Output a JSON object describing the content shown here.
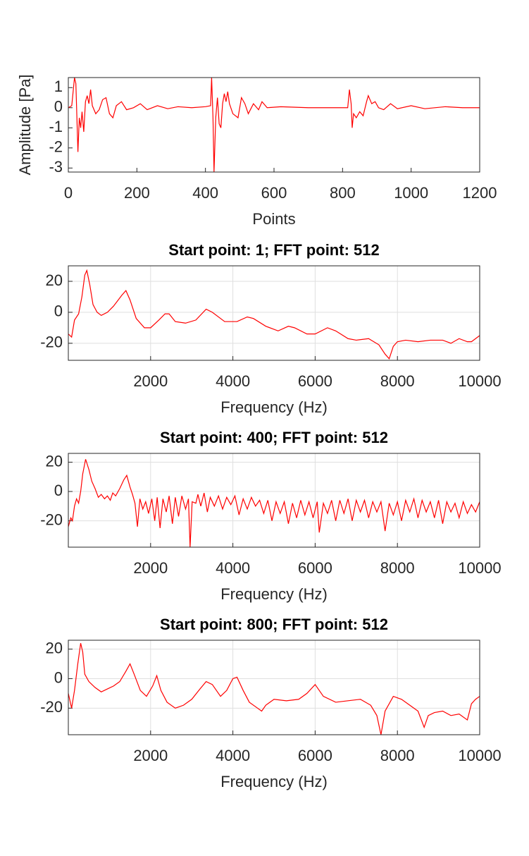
{
  "chart_data": [
    {
      "type": "line",
      "xlabel": "Points",
      "ylabel": "Amplitude [Pa]",
      "color": "#ff0000",
      "grid": false,
      "xlim": [
        0,
        1200
      ],
      "ylim": [
        -3.2,
        1.5
      ],
      "xticks": [
        0,
        200,
        400,
        600,
        800,
        1000,
        1200
      ],
      "yticks": [
        -3,
        -2,
        -1,
        0,
        1
      ],
      "x": [
        0,
        10,
        18,
        22,
        25,
        28,
        32,
        36,
        40,
        45,
        50,
        55,
        60,
        65,
        70,
        80,
        90,
        100,
        110,
        120,
        130,
        140,
        155,
        170,
        190,
        210,
        230,
        260,
        290,
        320,
        360,
        400,
        415,
        418,
        422,
        425,
        430,
        435,
        440,
        445,
        450,
        455,
        460,
        465,
        470,
        480,
        495,
        505,
        515,
        525,
        540,
        555,
        565,
        580,
        620,
        700,
        800,
        815,
        820,
        825,
        828,
        832,
        840,
        850,
        860,
        870,
        875,
        885,
        895,
        905,
        920,
        940,
        960,
        1000,
        1040,
        1100,
        1150,
        1200
      ],
      "values": [
        0,
        0.1,
        1.5,
        1.2,
        -0.5,
        -2.2,
        -0.5,
        -1.0,
        -0.2,
        -1.2,
        0.3,
        0.6,
        0.2,
        0.9,
        0.1,
        -0.3,
        -0.1,
        0.4,
        0.5,
        -0.3,
        -0.5,
        0.1,
        0.3,
        -0.1,
        0.0,
        0.2,
        -0.1,
        0.1,
        -0.05,
        0.05,
        0.0,
        0.05,
        0.1,
        1.5,
        -0.5,
        -3.2,
        -0.5,
        0.5,
        -0.8,
        -1.0,
        0.2,
        0.7,
        0.3,
        0.8,
        0.2,
        -0.3,
        -0.5,
        0.5,
        0.2,
        -0.3,
        0.2,
        -0.1,
        0.3,
        0.0,
        0.05,
        0.0,
        0.0,
        0.0,
        0.9,
        0.2,
        -1.0,
        -0.3,
        -0.5,
        -0.2,
        -0.4,
        0.3,
        0.6,
        0.2,
        0.3,
        0.0,
        -0.1,
        0.2,
        -0.05,
        0.1,
        -0.05,
        0.05,
        0.0,
        0.0
      ]
    },
    {
      "type": "line",
      "title": "Start point: 1; FFT point: 512",
      "xlabel": "Frequency (Hz)",
      "color": "#ff0000",
      "grid": true,
      "xlim": [
        0,
        10000
      ],
      "ylim": [
        -31,
        30
      ],
      "xticks": [
        2000,
        4000,
        6000,
        8000,
        10000
      ],
      "yticks": [
        -20,
        0,
        20
      ],
      "x": [
        0,
        80,
        150,
        250,
        330,
        400,
        450,
        520,
        600,
        700,
        800,
        950,
        1100,
        1300,
        1400,
        1500,
        1650,
        1850,
        2000,
        2200,
        2350,
        2450,
        2600,
        2850,
        3100,
        3350,
        3500,
        3800,
        4100,
        4350,
        4500,
        4800,
        5100,
        5350,
        5500,
        5800,
        6000,
        6300,
        6500,
        6800,
        7000,
        7300,
        7550,
        7700,
        7800,
        7900,
        8000,
        8200,
        8500,
        8800,
        9100,
        9300,
        9500,
        9700,
        9800,
        9900,
        10000
      ],
      "values": [
        -14,
        -16,
        -5,
        -1,
        10,
        24,
        27,
        18,
        5,
        0,
        -2,
        0,
        4,
        11,
        14,
        8,
        -4,
        -10,
        -10,
        -5,
        -1,
        -1,
        -6,
        -7,
        -5,
        2,
        0,
        -6,
        -6,
        -3,
        -4,
        -9,
        -12,
        -9,
        -10,
        -14,
        -14,
        -10,
        -12,
        -17,
        -18,
        -17,
        -21,
        -27,
        -30,
        -22,
        -19,
        -18,
        -19,
        -18,
        -18,
        -20,
        -17,
        -19,
        -19,
        -17,
        -15
      ]
    },
    {
      "type": "line",
      "title": "Start point: 400; FFT point: 512",
      "xlabel": "Frequency (Hz)",
      "color": "#ff0000",
      "grid": true,
      "xlim": [
        0,
        10000
      ],
      "ylim": [
        -38,
        26
      ],
      "xticks": [
        2000,
        4000,
        6000,
        8000,
        10000
      ],
      "yticks": [
        -20,
        0,
        20
      ],
      "x": [
        0,
        60,
        100,
        150,
        200,
        250,
        300,
        350,
        420,
        500,
        570,
        650,
        730,
        800,
        880,
        950,
        1020,
        1080,
        1150,
        1250,
        1350,
        1420,
        1500,
        1560,
        1620,
        1680,
        1740,
        1810,
        1880,
        1950,
        2030,
        2100,
        2160,
        2230,
        2300,
        2380,
        2450,
        2530,
        2600,
        2680,
        2760,
        2850,
        2920,
        2960,
        3010,
        3100,
        3150,
        3220,
        3300,
        3380,
        3450,
        3550,
        3650,
        3750,
        3850,
        3950,
        4050,
        4150,
        4250,
        4350,
        4450,
        4550,
        4650,
        4750,
        4850,
        4950,
        5050,
        5150,
        5250,
        5350,
        5450,
        5550,
        5650,
        5750,
        5850,
        5950,
        6050,
        6100,
        6200,
        6300,
        6400,
        6500,
        6600,
        6700,
        6800,
        6900,
        7000,
        7100,
        7200,
        7300,
        7400,
        7500,
        7600,
        7700,
        7800,
        7900,
        8000,
        8100,
        8200,
        8300,
        8400,
        8500,
        8600,
        8700,
        8800,
        8900,
        9000,
        9100,
        9200,
        9300,
        9400,
        9500,
        9600,
        9700,
        9800,
        9900,
        10000
      ],
      "values": [
        -24,
        -18,
        -20,
        -10,
        -5,
        -8,
        0,
        12,
        22,
        15,
        7,
        2,
        -4,
        -2,
        -5,
        -3,
        -6,
        -1,
        -3,
        2,
        8,
        11,
        3,
        -2,
        -8,
        -24,
        -5,
        -12,
        -7,
        -15,
        -5,
        -20,
        -4,
        -25,
        -5,
        -14,
        -3,
        -22,
        -4,
        -17,
        -3,
        -12,
        -5,
        -38,
        -7,
        -8,
        -2,
        -10,
        -1,
        -14,
        -4,
        -10,
        -3,
        -12,
        -4,
        -9,
        -3,
        -16,
        -5,
        -12,
        -4,
        -10,
        -6,
        -15,
        -6,
        -20,
        -7,
        -15,
        -7,
        -22,
        -8,
        -18,
        -6,
        -16,
        -7,
        -18,
        -7,
        -28,
        -8,
        -15,
        -6,
        -20,
        -6,
        -15,
        -5,
        -20,
        -6,
        -14,
        -6,
        -18,
        -7,
        -14,
        -7,
        -27,
        -8,
        -16,
        -7,
        -20,
        -6,
        -14,
        -5,
        -18,
        -6,
        -14,
        -7,
        -18,
        -6,
        -22,
        -7,
        -14,
        -8,
        -18,
        -7,
        -15,
        -9,
        -14,
        -7
      ]
    },
    {
      "type": "line",
      "title": "Start point: 800; FFT point: 512",
      "xlabel": "Frequency (Hz)",
      "color": "#ff0000",
      "grid": true,
      "xlim": [
        0,
        10000
      ],
      "ylim": [
        -38,
        26
      ],
      "xticks": [
        2000,
        4000,
        6000,
        8000,
        10000
      ],
      "yticks": [
        -20,
        0,
        20
      ],
      "x": [
        0,
        80,
        150,
        230,
        300,
        350,
        400,
        500,
        650,
        800,
        950,
        1100,
        1250,
        1400,
        1500,
        1600,
        1750,
        1900,
        2050,
        2150,
        2250,
        2400,
        2600,
        2800,
        3000,
        3200,
        3350,
        3500,
        3700,
        3850,
        4000,
        4100,
        4250,
        4400,
        4600,
        4700,
        4800,
        5000,
        5300,
        5600,
        5800,
        6000,
        6200,
        6500,
        6800,
        7100,
        7350,
        7500,
        7600,
        7700,
        7900,
        8100,
        8300,
        8500,
        8650,
        8750,
        8900,
        9100,
        9300,
        9500,
        9700,
        9800,
        9900,
        10000
      ],
      "values": [
        -10,
        -20,
        -8,
        10,
        24,
        18,
        3,
        -2,
        -6,
        -9,
        -7,
        -5,
        -2,
        5,
        10,
        3,
        -8,
        -12,
        -5,
        2,
        -8,
        -16,
        -20,
        -18,
        -14,
        -7,
        -2,
        -4,
        -12,
        -8,
        0,
        1,
        -8,
        -16,
        -20,
        -22,
        -18,
        -14,
        -15,
        -14,
        -10,
        -4,
        -12,
        -16,
        -15,
        -14,
        -18,
        -25,
        -38,
        -22,
        -12,
        -14,
        -18,
        -22,
        -33,
        -25,
        -23,
        -22,
        -25,
        -24,
        -28,
        -17,
        -14,
        -12
      ]
    }
  ]
}
